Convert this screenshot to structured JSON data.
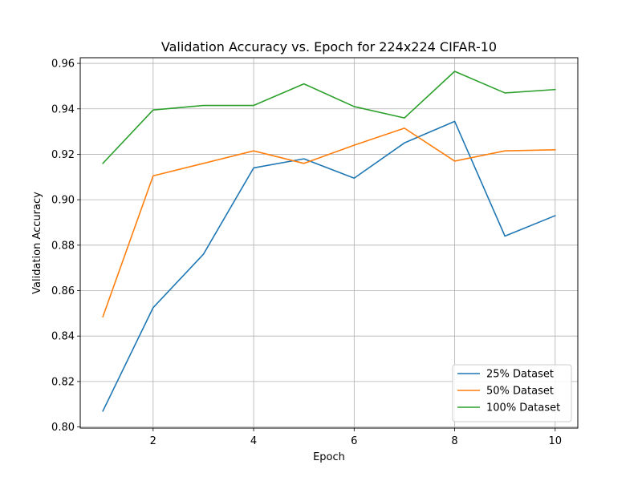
{
  "chart_data": {
    "type": "line",
    "title": "Validation Accuracy vs. Epoch for 224x224 CIFAR-10",
    "xlabel": "Epoch",
    "ylabel": "Validation Accuracy",
    "x": [
      1,
      2,
      3,
      4,
      5,
      6,
      7,
      8,
      9,
      10
    ],
    "xlim": [
      0.55,
      10.45
    ],
    "ylim": [
      0.7995,
      0.9625
    ],
    "xticks": [
      2,
      4,
      6,
      8,
      10
    ],
    "yticks": [
      0.8,
      0.82,
      0.84,
      0.86,
      0.88,
      0.9,
      0.92,
      0.94,
      0.96
    ],
    "xtick_labels": [
      "2",
      "4",
      "6",
      "8",
      "10"
    ],
    "ytick_labels": [
      "0.80",
      "0.82",
      "0.84",
      "0.86",
      "0.88",
      "0.90",
      "0.92",
      "0.94",
      "0.96"
    ],
    "grid": true,
    "legend_position": "lower-right",
    "series": [
      {
        "name": "25% Dataset",
        "color": "#1f77b4",
        "values": [
          0.807,
          0.8525,
          0.876,
          0.914,
          0.918,
          0.9095,
          0.925,
          0.9345,
          0.884,
          0.893
        ]
      },
      {
        "name": "50% Dataset",
        "color": "#ff7f0e",
        "values": [
          0.8485,
          0.9105,
          0.916,
          0.9215,
          0.916,
          0.924,
          0.9315,
          0.917,
          0.9215,
          0.922
        ]
      },
      {
        "name": "100% Dataset",
        "color": "#2ca02c",
        "values": [
          0.916,
          0.9395,
          0.9415,
          0.9415,
          0.951,
          0.941,
          0.936,
          0.9565,
          0.947,
          0.9485
        ]
      }
    ]
  }
}
